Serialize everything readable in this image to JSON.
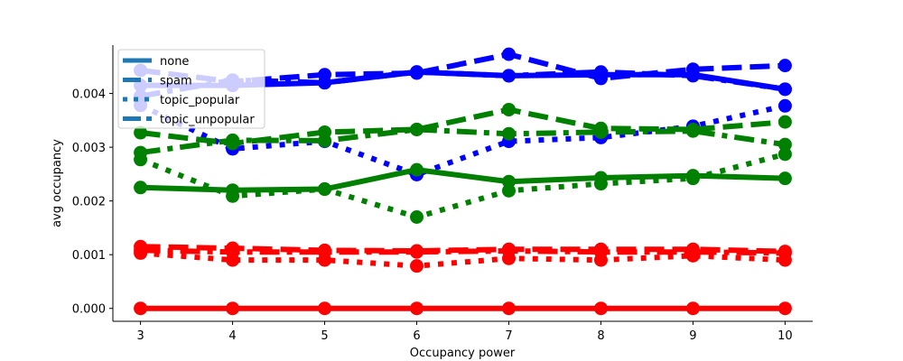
{
  "chart_data": {
    "type": "line",
    "title": "",
    "xlabel": "Occupancy power",
    "ylabel": "avg occupancy",
    "x": [
      3,
      4,
      5,
      6,
      7,
      8,
      9,
      10
    ],
    "xlim": [
      2.7,
      10.3
    ],
    "ylim": [
      -0.00024,
      0.0049
    ],
    "xticks": [
      "3",
      "4",
      "5",
      "6",
      "7",
      "8",
      "9",
      "10"
    ],
    "yticks": [
      {
        "value": 0.0,
        "label": "0.000"
      },
      {
        "value": 0.001,
        "label": "0.001"
      },
      {
        "value": 0.002,
        "label": "0.002"
      },
      {
        "value": 0.003,
        "label": "0.003"
      },
      {
        "value": 0.004,
        "label": "0.004"
      }
    ],
    "grid": false,
    "legend_position": "top-left",
    "legend": [
      {
        "name": "none",
        "style": "solid"
      },
      {
        "name": "spam",
        "style": "dashed"
      },
      {
        "name": "topic_popular",
        "style": "dotted"
      },
      {
        "name": "topic_unpopular",
        "style": "dashdot"
      }
    ],
    "legend_color": "#1f77b4",
    "series": [
      {
        "group": "blue",
        "style": "solid",
        "color": "#0000ff",
        "values": [
          0.00415,
          0.00415,
          0.0042,
          0.0044,
          0.00433,
          0.00435,
          0.00435,
          0.00408
        ]
      },
      {
        "group": "blue",
        "style": "dashed",
        "color": "#0000ff",
        "values": [
          0.00443,
          0.00422,
          0.00435,
          0.00438,
          0.00473,
          0.00428,
          0.00445,
          0.00452
        ]
      },
      {
        "group": "blue",
        "style": "dotted",
        "color": "#0000ff",
        "values": [
          0.00378,
          0.00297,
          0.00311,
          0.00249,
          0.00311,
          0.00318,
          0.00339,
          0.00377
        ]
      },
      {
        "group": "blue",
        "style": "dashdot",
        "color": "#0000ff",
        "values": [
          0.00395,
          0.00425,
          0.0042,
          0.0044,
          0.00433,
          0.0044,
          0.00433,
          0.00408
        ]
      },
      {
        "group": "green",
        "style": "solid",
        "color": "#008000",
        "values": [
          0.00225,
          0.0022,
          0.00222,
          0.00258,
          0.00236,
          0.00243,
          0.00247,
          0.00242
        ]
      },
      {
        "group": "green",
        "style": "dashed",
        "color": "#008000",
        "values": [
          0.00327,
          0.00307,
          0.00328,
          0.00333,
          0.0037,
          0.00335,
          0.00333,
          0.00347
        ]
      },
      {
        "group": "green",
        "style": "dotted",
        "color": "#008000",
        "values": [
          0.00277,
          0.00209,
          0.00222,
          0.0017,
          0.00219,
          0.00232,
          0.00242,
          0.00287
        ]
      },
      {
        "group": "green",
        "style": "dashdot",
        "color": "#008000",
        "values": [
          0.0029,
          0.00313,
          0.00312,
          0.00333,
          0.00325,
          0.00328,
          0.0033,
          0.00305
        ]
      },
      {
        "group": "red",
        "style": "solid",
        "color": "#ff0000",
        "values": [
          0.0,
          0.0,
          0.0,
          0.0,
          0.0,
          0.0,
          0.0,
          0.0
        ]
      },
      {
        "group": "red",
        "style": "dashed",
        "color": "#ff0000",
        "values": [
          0.00115,
          0.00112,
          0.00108,
          0.00107,
          0.0011,
          0.0011,
          0.0011,
          0.00106
        ]
      },
      {
        "group": "red",
        "style": "dotted",
        "color": "#ff0000",
        "values": [
          0.00103,
          0.0009,
          0.0009,
          0.00079,
          0.00093,
          0.0009,
          0.00098,
          0.0009
        ]
      },
      {
        "group": "red",
        "style": "dashdot",
        "color": "#ff0000",
        "values": [
          0.00108,
          0.00105,
          0.00105,
          0.00105,
          0.00107,
          0.00105,
          0.00105,
          0.00103
        ]
      }
    ]
  }
}
